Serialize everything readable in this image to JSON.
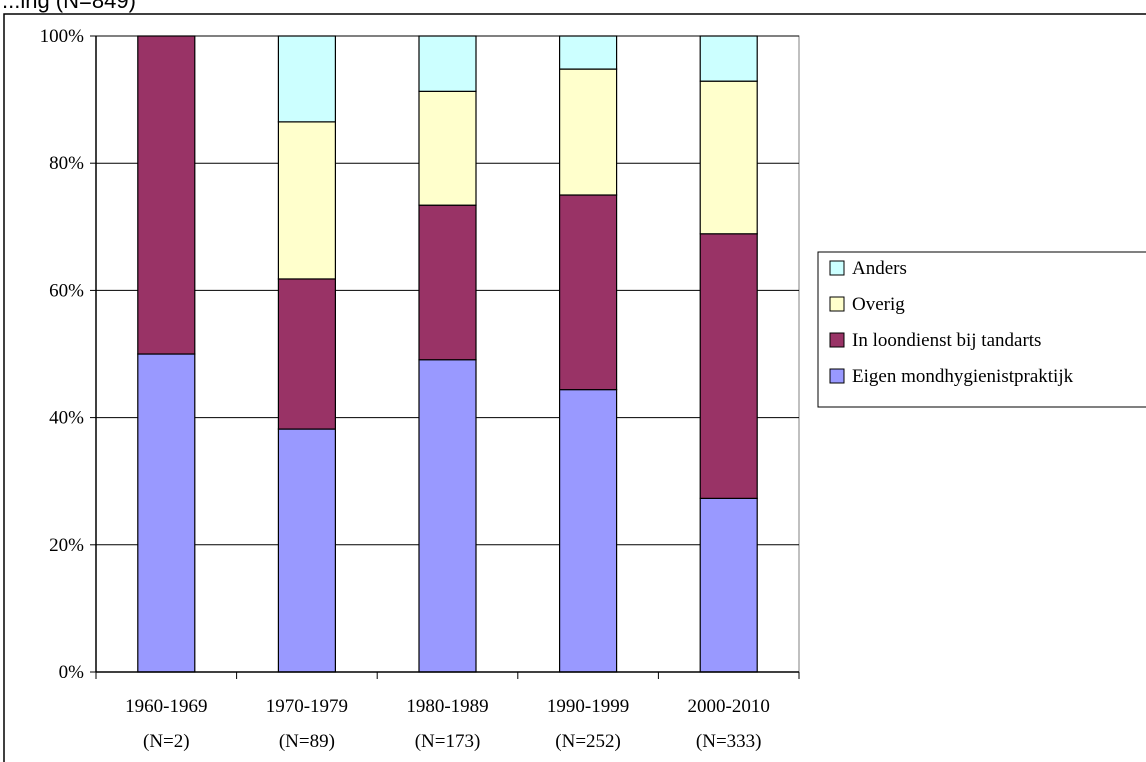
{
  "title": "...ing (N=849)",
  "chart_data": {
    "type": "bar",
    "stacked": true,
    "percent": true,
    "title": "...ing (N=849)",
    "categories": [
      "1960-1969",
      "1970-1979",
      "1980-1989",
      "1990-1999",
      "2000-2010"
    ],
    "category_sublabels": [
      "(N=2)",
      "(N=89)",
      "(N=173)",
      "(N=252)",
      "(N=333)"
    ],
    "ylim": [
      0,
      100
    ],
    "yticks": [
      "0%",
      "20%",
      "40%",
      "60%",
      "80%",
      "100%"
    ],
    "ytick_values": [
      0,
      20,
      40,
      60,
      80,
      100
    ],
    "grid": true,
    "legend_position": "right",
    "series": [
      {
        "name": "Eigen mondhygienistpraktijk",
        "color": "#9999FF",
        "values": [
          50,
          38.2,
          49.1,
          44.4,
          27.3
        ]
      },
      {
        "name": "In loondienst bij tandarts",
        "color": "#993366",
        "values": [
          50,
          23.6,
          24.3,
          30.6,
          41.6
        ]
      },
      {
        "name": "Overig",
        "color": "#FFFFCC",
        "values": [
          0,
          24.7,
          17.9,
          19.8,
          24.0
        ]
      },
      {
        "name": "Anders",
        "color": "#CCFFFF",
        "values": [
          0,
          13.5,
          8.7,
          5.2,
          7.1
        ]
      }
    ]
  }
}
